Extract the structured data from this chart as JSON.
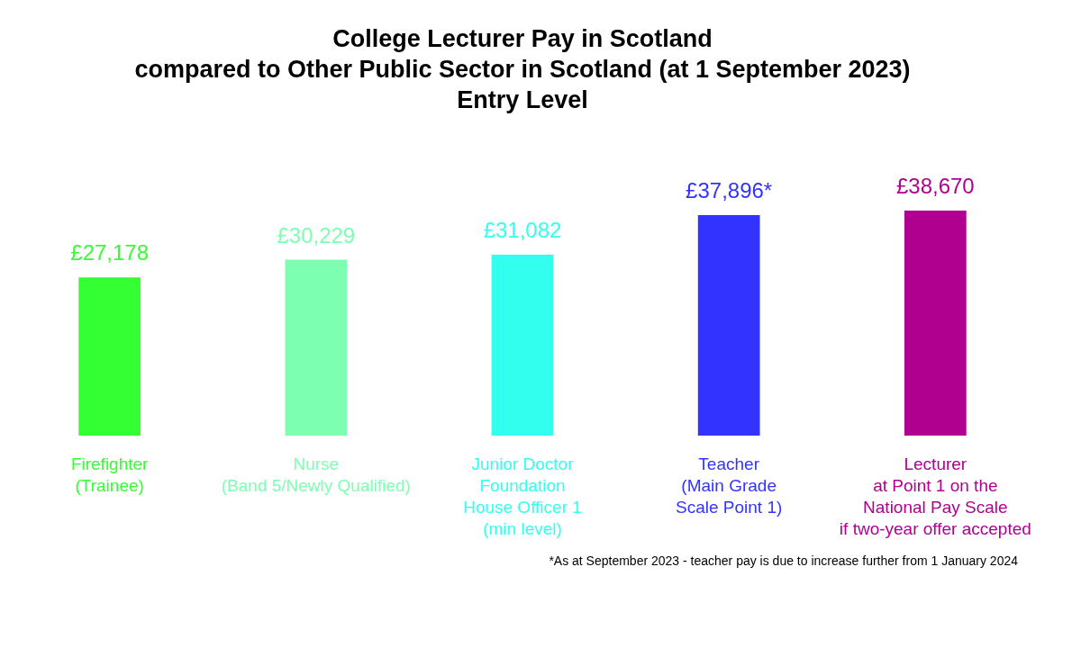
{
  "chart_data": {
    "type": "bar",
    "title": "College Lecturer Pay in Scotland\ncompared to Other Public Sector in Scotland (at 1 September 2023)\nEntry Level",
    "categories": [
      "Firefighter\n(Trainee)",
      "Nurse\n(Band 5/Newly Qualified)",
      "Junior Doctor\nFoundation\nHouse Officer 1\n(min level)",
      "Teacher\n(Main Grade\nScale Point 1)",
      "Lecturer\nat Point 1 on the\nNational Pay Scale\nif two-year offer accepted"
    ],
    "values": [
      27178,
      30229,
      31082,
      37896,
      38670
    ],
    "colors": [
      "#33ff33",
      "#7dffb2",
      "#33ffee",
      "#3333ff",
      "#b0008f"
    ],
    "value_labels": [
      "£27,178",
      "£30,229",
      "£31,082",
      "£37,896*",
      "£38,670"
    ],
    "annotations": [
      "*As at September 2023 - teacher pay is due to increase further from 1 January 2024"
    ]
  }
}
